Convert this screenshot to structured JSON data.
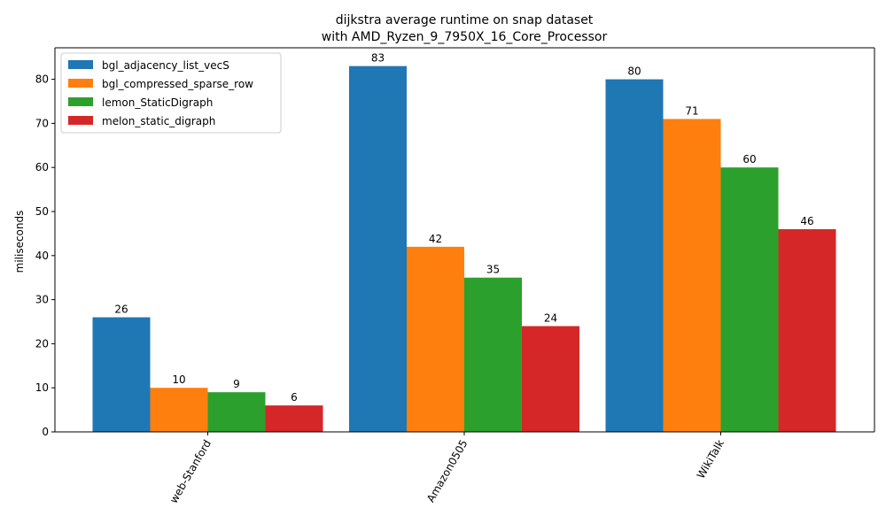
{
  "chart_data": {
    "type": "bar",
    "title": [
      "dijkstra average runtime on snap dataset",
      "with AMD_Ryzen_9_7950X_16_Core_Processor"
    ],
    "xlabel": "",
    "ylabel": "miliseconds",
    "categories": [
      "web-Stanford",
      "Amazon0505",
      "WikiTalk"
    ],
    "series": [
      {
        "name": "bgl_adjacency_list_vecS",
        "color": "#1f77b4",
        "values": [
          26,
          83,
          80
        ]
      },
      {
        "name": "bgl_compressed_sparse_row",
        "color": "#ff7f0e",
        "values": [
          10,
          42,
          71
        ]
      },
      {
        "name": "lemon_StaticDigraph",
        "color": "#2ca02c",
        "values": [
          9,
          35,
          60
        ]
      },
      {
        "name": "melon_static_digraph",
        "color": "#d62728",
        "values": [
          6,
          24,
          46
        ]
      }
    ],
    "ylim": [
      0,
      87.15
    ],
    "yticks": [
      0,
      10,
      20,
      30,
      40,
      50,
      60,
      70,
      80
    ],
    "xtick_rotation": 60,
    "legend_position": "top-left",
    "grid": false
  }
}
